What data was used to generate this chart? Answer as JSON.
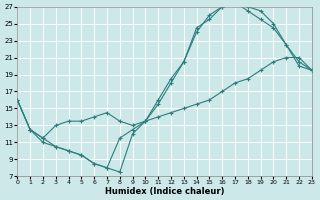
{
  "xlabel": "Humidex (Indice chaleur)",
  "bg_color": "#cce8e8",
  "line_color": "#2e7d7d",
  "grid_color": "#ffffff",
  "xlim": [
    0,
    23
  ],
  "ylim": [
    7,
    27
  ],
  "xticks": [
    0,
    1,
    2,
    3,
    4,
    5,
    6,
    7,
    8,
    9,
    10,
    11,
    12,
    13,
    14,
    15,
    16,
    17,
    18,
    19,
    20,
    21,
    22,
    23
  ],
  "yticks": [
    7,
    9,
    11,
    13,
    15,
    17,
    19,
    21,
    23,
    25,
    27
  ],
  "line1_x": [
    0,
    1,
    2,
    3,
    4,
    5,
    6,
    7,
    8,
    9,
    10,
    11,
    12,
    13,
    14,
    15,
    16,
    17,
    18,
    19,
    20,
    21,
    22,
    23
  ],
  "line1_y": [
    16,
    12.5,
    11.0,
    10.5,
    10.0,
    9.5,
    8.5,
    8.0,
    7.5,
    12.0,
    13.5,
    16.0,
    18.5,
    20.5,
    24.5,
    25.5,
    27.0,
    27.5,
    27.0,
    26.5,
    25.0,
    22.5,
    20.0,
    19.5
  ],
  "line2_x": [
    0,
    1,
    2,
    3,
    4,
    5,
    6,
    7,
    8,
    9,
    10,
    11,
    12,
    13,
    14,
    15,
    16,
    17,
    18,
    19,
    20,
    21,
    22,
    23
  ],
  "line2_y": [
    16,
    12.5,
    11.5,
    10.5,
    10.0,
    9.5,
    8.5,
    8.0,
    11.5,
    12.5,
    13.5,
    15.5,
    18.0,
    20.5,
    24.0,
    26.0,
    27.0,
    27.5,
    26.5,
    25.5,
    24.5,
    22.5,
    20.5,
    19.5
  ],
  "line3_x": [
    0,
    1,
    2,
    3,
    4,
    5,
    6,
    7,
    8,
    9,
    10,
    11,
    12,
    13,
    14,
    15,
    16,
    17,
    18,
    19,
    20,
    21,
    22,
    23
  ],
  "line3_y": [
    16,
    12.5,
    11.5,
    13.0,
    13.5,
    13.5,
    14.0,
    14.5,
    13.5,
    13.0,
    13.5,
    14.0,
    14.5,
    15.0,
    15.5,
    16.0,
    17.0,
    18.0,
    18.5,
    19.5,
    20.5,
    21.0,
    21.0,
    19.5
  ]
}
